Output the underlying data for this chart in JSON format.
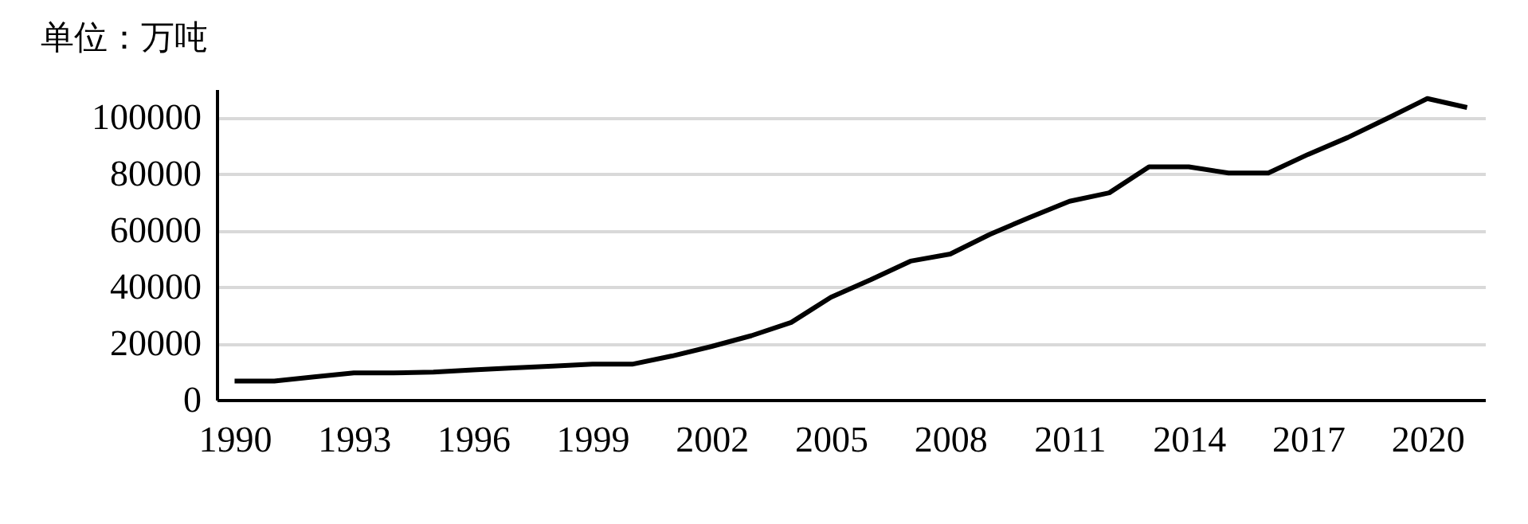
{
  "chart_data": {
    "type": "line",
    "ylabel": "单位：万吨",
    "categories": [
      "1990",
      null,
      null,
      "1993",
      null,
      null,
      "1996",
      null,
      null,
      "1999",
      null,
      null,
      "2002",
      null,
      null,
      "2005",
      null,
      null,
      "2008",
      null,
      null,
      "2011",
      null,
      null,
      "2014",
      null,
      null,
      "2017",
      null,
      null,
      "2020",
      null
    ],
    "series": [
      {
        "color": "#000000",
        "values": [
          6600,
          6600,
          8100,
          9500,
          9500,
          9800,
          10600,
          11300,
          11900,
          12600,
          12600,
          15500,
          18900,
          22700,
          27400,
          36300,
          42500,
          49100,
          51600,
          58600,
          64600,
          70300,
          73300,
          82500,
          82500,
          80300,
          80300,
          86900,
          92900,
          99700,
          106700,
          103500
        ]
      }
    ],
    "ylim": [
      0,
      110000
    ],
    "yticks": [
      0,
      20000,
      40000,
      60000,
      80000,
      100000
    ],
    "grid": "y",
    "marker": "none",
    "line_style": "solid"
  }
}
